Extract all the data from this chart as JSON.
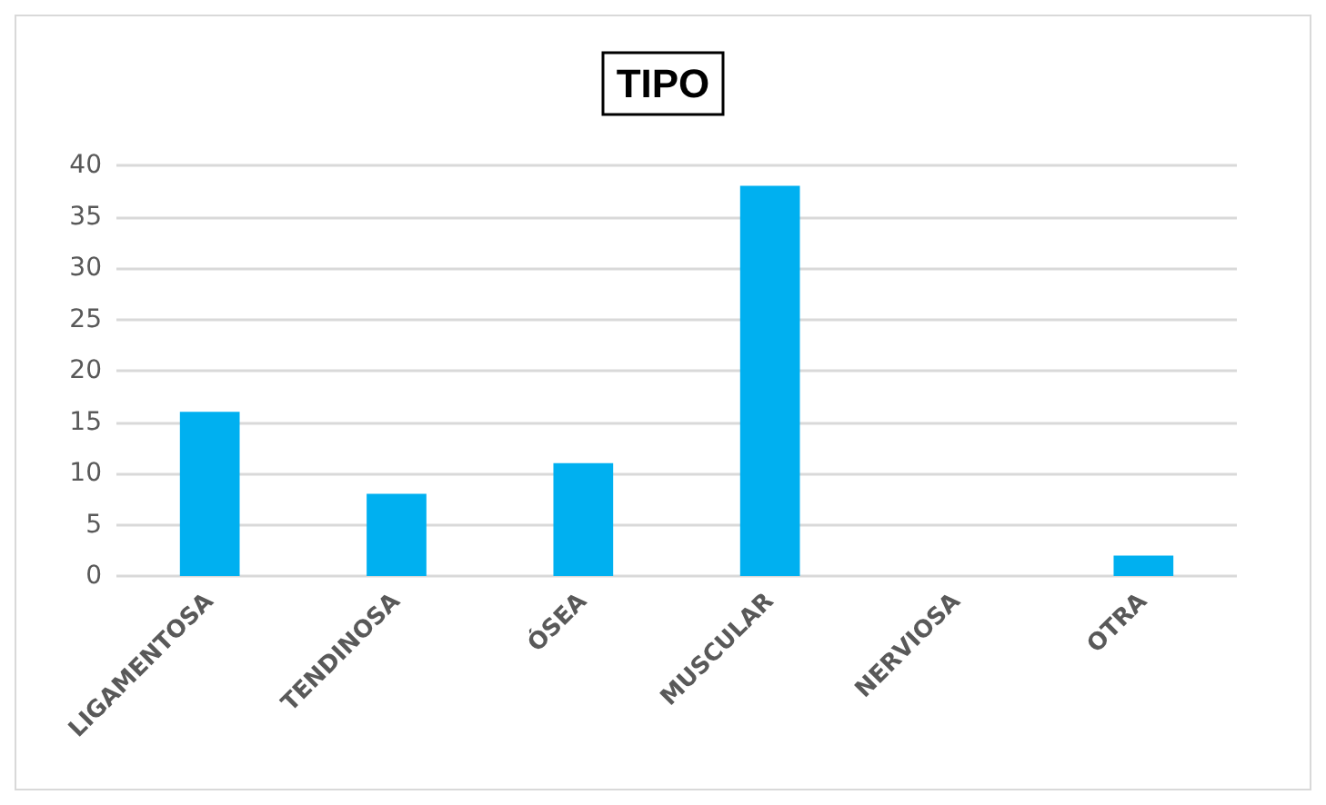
{
  "chart_data": {
    "type": "bar",
    "title": "TIPO",
    "categories": [
      "LIGAMENTOSA",
      "TENDINOSA",
      "ÓSEA",
      "MUSCULAR",
      "NERVIOSA",
      "OTRA"
    ],
    "values": [
      16,
      8,
      11,
      38,
      0,
      2
    ],
    "color": "#00b0f0",
    "ylim": [
      0,
      40
    ],
    "yticks": [
      0,
      5,
      10,
      15,
      20,
      25,
      30,
      35,
      40
    ],
    "grid": "y"
  }
}
